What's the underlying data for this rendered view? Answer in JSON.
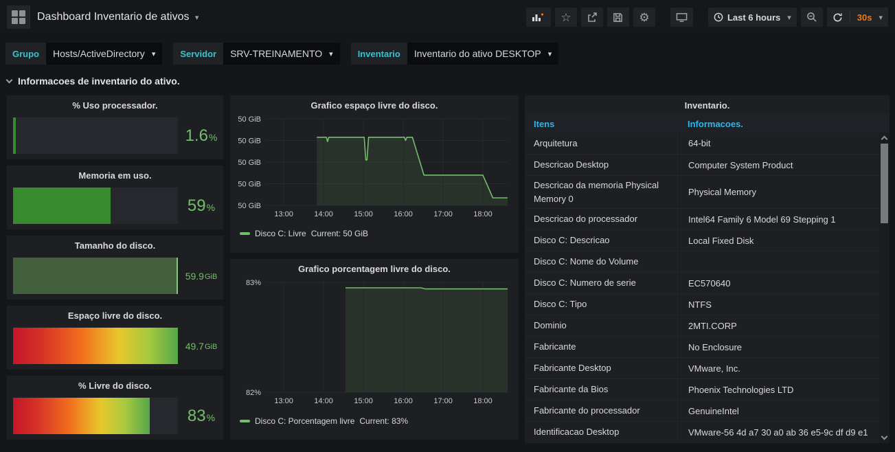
{
  "nav": {
    "title": "Dashboard Inventario de ativos",
    "time_range": "Last 6 hours",
    "refresh_interval": "30s",
    "icons": [
      "add-panel-icon",
      "star-icon",
      "share-icon",
      "save-icon",
      "settings-icon",
      "tv-icon",
      "clock-icon",
      "zoom-out-icon",
      "refresh-icon"
    ]
  },
  "variables": [
    {
      "label": "Grupo",
      "value": "Hosts/ActiveDirectory"
    },
    {
      "label": "Servidor",
      "value": "SRV-TREINAMENTO"
    },
    {
      "label": "Inventario",
      "value": "Inventario do ativo DESKTOP"
    }
  ],
  "row_header": {
    "title": "Informacoes de inventario do ativo."
  },
  "gauges": [
    {
      "title": "% Uso processador.",
      "num": "1.6",
      "suffix": "%",
      "percent": 1.6,
      "style": "solid",
      "size": "big"
    },
    {
      "title": "Memoria em uso.",
      "num": "59",
      "suffix": "%",
      "percent": 59,
      "style": "solid",
      "size": "big"
    },
    {
      "title": "Tamanho do disco.",
      "num": "59.9",
      "suffix": "GiB",
      "percent": 100,
      "style": "muted",
      "size": "small"
    },
    {
      "title": "Espaço livre do disco.",
      "num": "49.7",
      "suffix": "GiB",
      "percent": 100,
      "style": "gradient",
      "size": "small"
    },
    {
      "title": "% Livre do disco.",
      "num": "83",
      "suffix": "%",
      "percent": 83,
      "style": "gradient",
      "size": "big"
    }
  ],
  "chart_data": [
    {
      "type": "area",
      "title": "Grafico espaço livre do disco.",
      "xlabel": "time",
      "ylabel": "GiB",
      "xlim": [
        12.55,
        18.62
      ],
      "ylim": [
        49.7,
        50.5
      ],
      "x_ticks": [
        {
          "v": 13,
          "label": "13:00"
        },
        {
          "v": 14,
          "label": "14:00"
        },
        {
          "v": 15,
          "label": "15:00"
        },
        {
          "v": 16,
          "label": "16:00"
        },
        {
          "v": 17,
          "label": "17:00"
        },
        {
          "v": 18,
          "label": "18:00"
        }
      ],
      "y_ticks": [
        {
          "v": 50.5,
          "label": "50 GiB"
        },
        {
          "v": 50.3,
          "label": "50 GiB"
        },
        {
          "v": 50.1,
          "label": "50 GiB"
        },
        {
          "v": 49.9,
          "label": "50 GiB"
        },
        {
          "v": 49.7,
          "label": "50 GiB"
        }
      ],
      "grid": true,
      "legend_position": "bottom-left",
      "series": [
        {
          "name": "Disco C: Livre",
          "color": "#73bf69",
          "fill_alpha": 0.12,
          "points": [
            [
              13.83,
              50.33
            ],
            [
              14.07,
              50.33
            ],
            [
              14.1,
              50.29
            ],
            [
              14.13,
              50.33
            ],
            [
              15.02,
              50.33
            ],
            [
              15.06,
              50.12
            ],
            [
              15.09,
              50.12
            ],
            [
              15.13,
              50.33
            ],
            [
              16.03,
              50.33
            ],
            [
              16.06,
              50.3
            ],
            [
              16.09,
              50.33
            ],
            [
              16.23,
              50.33
            ],
            [
              16.52,
              49.98
            ],
            [
              18.0,
              49.98
            ],
            [
              18.25,
              49.77
            ],
            [
              18.62,
              49.77
            ]
          ]
        }
      ],
      "legend": {
        "name": "Disco C: Livre",
        "current": "Current: 50 GiB"
      }
    },
    {
      "type": "area",
      "title": "Grafico porcentagem livre do disco.",
      "xlabel": "time",
      "ylabel": "%",
      "xlim": [
        12.55,
        18.62
      ],
      "ylim": [
        82,
        83
      ],
      "x_ticks": [
        {
          "v": 13,
          "label": "13:00"
        },
        {
          "v": 14,
          "label": "14:00"
        },
        {
          "v": 15,
          "label": "15:00"
        },
        {
          "v": 16,
          "label": "16:00"
        },
        {
          "v": 17,
          "label": "17:00"
        },
        {
          "v": 18,
          "label": "18:00"
        }
      ],
      "y_ticks": [
        {
          "v": 83,
          "label": "83%"
        },
        {
          "v": 82,
          "label": "82%"
        }
      ],
      "grid": true,
      "legend_position": "bottom-left",
      "series": [
        {
          "name": "Disco C: Porcentagem livre",
          "color": "#73bf69",
          "fill_alpha": 0.12,
          "points": [
            [
              14.55,
              82.95
            ],
            [
              16.45,
              82.95
            ],
            [
              16.55,
              82.94
            ],
            [
              18.62,
              82.94
            ]
          ]
        }
      ],
      "legend": {
        "name": "Disco C: Porcentagem livre",
        "current": "Current: 83%"
      }
    }
  ],
  "table": {
    "title": "Inventario.",
    "columns": [
      "Itens",
      "Informacoes."
    ],
    "rows": [
      {
        "item": "Arquitetura",
        "info": "64-bit"
      },
      {
        "item": "Descricao Desktop",
        "info": "Computer System Product"
      },
      {
        "item": "Descricao da memoria Physical Memory 0",
        "info": "Physical Memory"
      },
      {
        "item": "Descricao do processador",
        "info": "Intel64 Family 6 Model 69 Stepping 1"
      },
      {
        "item": "Disco C: Descricao",
        "info": "Local Fixed Disk"
      },
      {
        "item": "Disco C: Nome do Volume",
        "info": ""
      },
      {
        "item": "Disco C: Numero de serie",
        "info": "EC570640"
      },
      {
        "item": "Disco C: Tipo",
        "info": "NTFS"
      },
      {
        "item": "Dominio",
        "info": "2MTI.CORP"
      },
      {
        "item": "Fabricante",
        "info": "No Enclosure"
      },
      {
        "item": "Fabricante Desktop",
        "info": "VMware, Inc."
      },
      {
        "item": "Fabricante da Bios",
        "info": "Phoenix Technologies LTD"
      },
      {
        "item": "Fabricante do processador",
        "info": "GenuineIntel"
      },
      {
        "item": "Identificacao Desktop",
        "info": "VMware-56 4d a7 30 a0 ab 36 e5-9c df d9 e1"
      }
    ]
  },
  "colors": {
    "background": "#141619",
    "panel": "#1e1f23",
    "grid": "#26282c",
    "green_text": "#73bf69",
    "bar_green": "#388a2e",
    "muted_fill": "#43603c",
    "muted_edge": "#86c786",
    "header_blue": "#33b5e5",
    "variable_teal": "#3ec1c9",
    "refresh_orange": "#eb7b18"
  }
}
